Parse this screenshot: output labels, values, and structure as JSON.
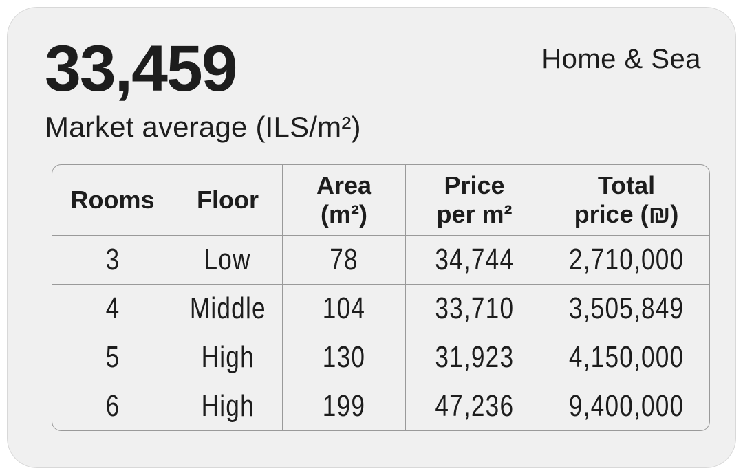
{
  "card": {
    "stat": {
      "value": "33,459",
      "label": "Market average (ILS/m²)"
    },
    "brand": "Home & Sea"
  },
  "table": {
    "headers": [
      {
        "line1": "Rooms",
        "line2": ""
      },
      {
        "line1": "Floor",
        "line2": ""
      },
      {
        "line1": "Area",
        "line2": "(m²)"
      },
      {
        "line1": "Price",
        "line2": "per m²"
      },
      {
        "line1": "Total",
        "line2": "price (₪)"
      }
    ],
    "rows": [
      {
        "cells": [
          "3",
          "Low",
          "78",
          "34,744",
          "2,710,000"
        ]
      },
      {
        "cells": [
          "4",
          "Middle",
          "104",
          "33,710",
          "3,505,849"
        ]
      },
      {
        "cells": [
          "5",
          "High",
          "130",
          "31,923",
          "4,150,000"
        ]
      },
      {
        "cells": [
          "6",
          "High",
          "199",
          "47,236",
          "9,400,000"
        ]
      }
    ]
  },
  "colors": {
    "page_bg": "#ffffff",
    "card_bg": "#f0f0f0",
    "card_border": "#d8d8d8",
    "table_border": "#9a9a9a",
    "text": "#1d1d1d"
  },
  "chart_data": {
    "type": "table",
    "title": "33,459",
    "subtitle": "Market average (ILS/m²)",
    "brand": "Home & Sea",
    "columns": [
      "Rooms",
      "Floor",
      "Area (m²)",
      "Price per m²",
      "Total price (₪)"
    ],
    "rows": [
      [
        3,
        "Low",
        78,
        34744,
        2710000
      ],
      [
        4,
        "Middle",
        104,
        33710,
        3505849
      ],
      [
        5,
        "High",
        130,
        31923,
        4150000
      ],
      [
        6,
        "High",
        199,
        47236,
        9400000
      ]
    ]
  }
}
